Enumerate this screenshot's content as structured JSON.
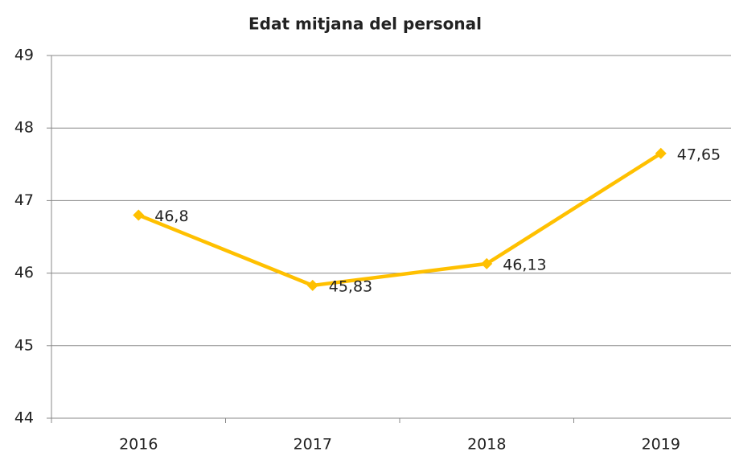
{
  "chart_data": {
    "type": "line",
    "title": "Edat mitjana del personal",
    "categories": [
      "2016",
      "2017",
      "2018",
      "2019"
    ],
    "series": [
      {
        "name": "Edat mitjana",
        "color": "#ffc000",
        "values": [
          46.8,
          45.83,
          46.13,
          47.65
        ],
        "value_labels": [
          "46,8",
          "45,83",
          "46,13",
          "47,65"
        ]
      }
    ],
    "ylim": [
      44,
      49
    ],
    "yticks": [
      44,
      45,
      46,
      47,
      48,
      49
    ],
    "grid": true
  }
}
